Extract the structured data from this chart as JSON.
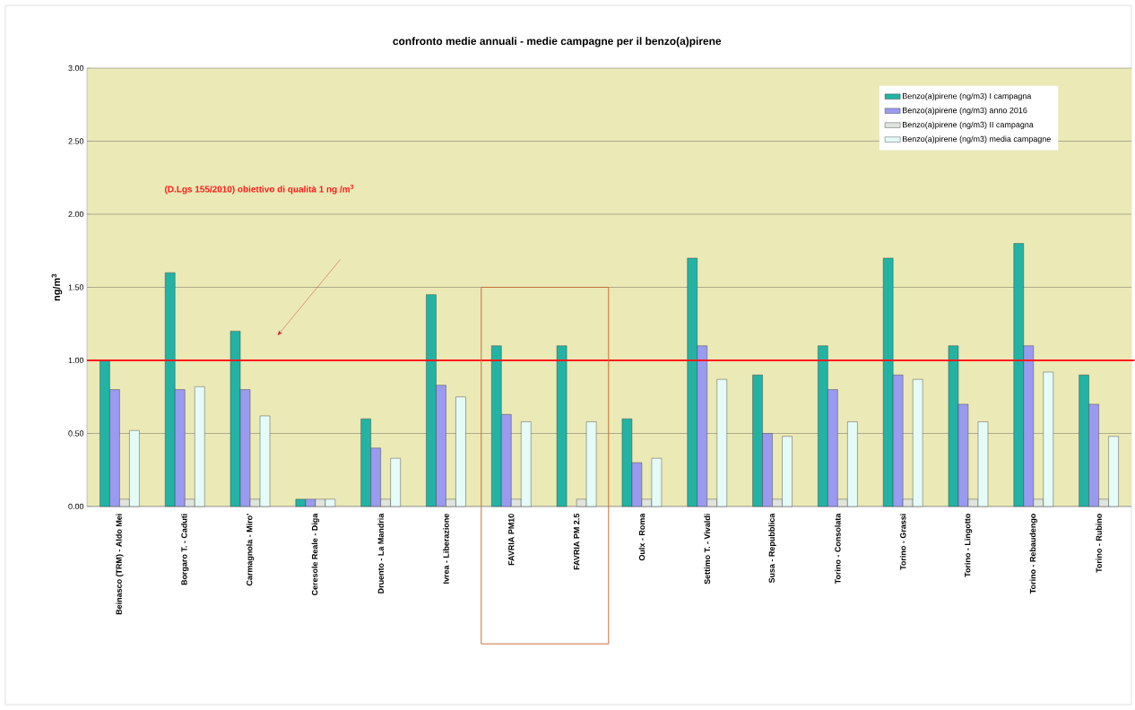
{
  "chart_data": {
    "type": "bar",
    "title": "confronto medie annuali - medie campagne per il benzo(a)pirene",
    "ylabel": "ng/m$^{3}$",
    "categories": [
      "Beinasco (TRM) - Aldo Mei",
      "Borgaro T. - Caduti",
      "Carmagnola - Miro'",
      "Ceresole Reale - Diga",
      "Druento - La Mandria",
      "Ivrea - Liberazione",
      "FAVRIA PM10",
      "FAVRIA PM 2.5",
      "Oulx - Roma",
      "Settimo T. - Vivaldi",
      "Susa - Repubblica",
      "Torino - Consolata",
      "Torino - Grassi",
      "Torino - Lingotto",
      "Torino - Rebaudengo",
      "Torino - Rubino"
    ],
    "series": [
      {
        "name": "Benzo(a)pirene (ng/m3) I campagna",
        "color": "#22b3a4",
        "values": [
          1.0,
          1.6,
          1.2,
          0.05,
          0.6,
          1.45,
          1.1,
          1.1,
          0.6,
          1.7,
          0.9,
          1.1,
          1.7,
          1.1,
          1.8,
          0.9
        ]
      },
      {
        "name": "Benzo(a)pirene (ng/m3) anno 2016",
        "color": "#9a9af0",
        "values": [
          0.8,
          0.8,
          0.8,
          0.05,
          0.4,
          0.83,
          0.63,
          null,
          0.3,
          1.1,
          0.5,
          0.8,
          0.9,
          0.7,
          1.1,
          0.7
        ]
      },
      {
        "name": "Benzo(a)pirene (ng/m3) II campagna",
        "color": "#dfe4dc",
        "values": [
          0.05,
          0.05,
          0.05,
          0.05,
          0.05,
          0.05,
          0.05,
          0.05,
          0.05,
          0.05,
          0.05,
          0.05,
          0.05,
          0.05,
          0.05,
          0.05
        ]
      },
      {
        "name": "Benzo(a)pirene (ng/m3) media campagne",
        "color": "#e4fbf8",
        "values": [
          0.52,
          0.82,
          0.62,
          0.05,
          0.33,
          0.75,
          0.58,
          0.58,
          0.33,
          0.87,
          0.48,
          0.58,
          0.87,
          0.58,
          0.92,
          0.48
        ]
      }
    ],
    "ylim": [
      0,
      3
    ],
    "yticks": [
      {
        "value": 0,
        "label": "0.00"
      },
      {
        "value": 0.5,
        "label": "0.50"
      },
      {
        "value": 1,
        "label": "1.00"
      },
      {
        "value": 1.5,
        "label": "1.50"
      },
      {
        "value": 2,
        "label": "2.00"
      },
      {
        "value": 2.5,
        "label": "2.50"
      },
      {
        "value": 3,
        "label": "3.00"
      }
    ],
    "ref_lines": [
      {
        "axis": "y",
        "value": 1,
        "label": "(D.Lgs 155/2010) obiettivo di qualità 1 ng /m$^{3}$",
        "color": "#ff1a1a"
      }
    ],
    "grid": "y",
    "legend": "top right"
  }
}
